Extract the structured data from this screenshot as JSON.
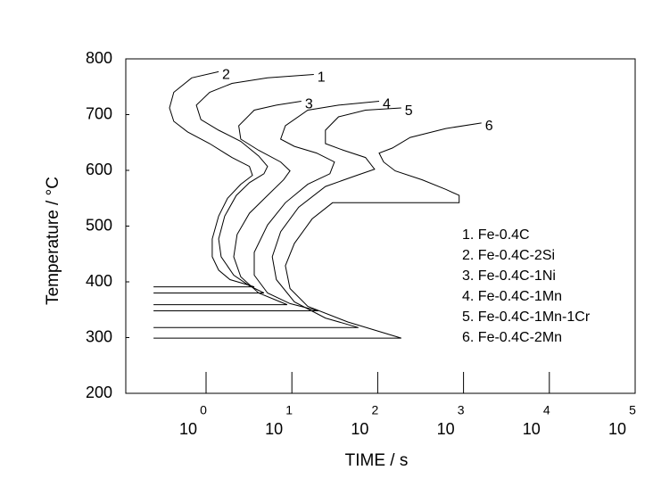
{
  "chart_data": {
    "type": "line",
    "y_label": "Temperature / °C",
    "x_label": "TIME / s",
    "x_scale": "log",
    "xlim": [
      0.116,
      100000
    ],
    "xticks": [
      {
        "value": 1,
        "label": "10",
        "exponent": "0"
      },
      {
        "value": 10,
        "label": "10",
        "exponent": "1"
      },
      {
        "value": 100,
        "label": "10",
        "exponent": "2"
      },
      {
        "value": 1000,
        "label": "10",
        "exponent": "3"
      },
      {
        "value": 10000,
        "label": "10",
        "exponent": "4"
      },
      {
        "value": 100000,
        "label": "10",
        "exponent": "5"
      }
    ],
    "ylim": [
      200,
      800
    ],
    "yticks": [
      200,
      300,
      400,
      500,
      600,
      700,
      800
    ],
    "grid": false,
    "legend": "right",
    "series": [
      {
        "name": "1. Fe-0.4C",
        "label": "1",
        "color": "#000000",
        "x": [
          18,
          5.2,
          2.0,
          1.1,
          0.77,
          0.87,
          1.4,
          2.54,
          4.1,
          5.2,
          4.73,
          3.2,
          2.25,
          1.65,
          1.4,
          1.5,
          2.1,
          3.2,
          4.73,
          0.244
        ],
        "values": [
          772,
          766,
          756,
          740,
          717,
          691,
          672,
          652,
          626,
          607,
          594,
          578,
          555,
          518,
          477,
          445,
          412,
          393,
          380,
          380
        ]
      },
      {
        "name": "2. Fe-0.4C-2Si",
        "label": "2",
        "color": "#000000",
        "x": [
          1.4,
          0.68,
          0.42,
          0.375,
          0.42,
          0.61,
          1.1,
          2.0,
          3.2,
          3.47,
          2.54,
          1.78,
          1.4,
          1.18,
          1.18,
          1.4,
          1.9,
          2.86,
          3.64,
          0.244
        ],
        "values": [
          777,
          766,
          740,
          712,
          688,
          669,
          648,
          623,
          607,
          591,
          575,
          550,
          518,
          477,
          445,
          421,
          404,
          396,
          391,
          391
        ]
      },
      {
        "name": "3. Fe-0.4C-1Ni",
        "label": "3",
        "color": "#000000",
        "x": [
          12.9,
          6.6,
          3.64,
          2.4,
          2.54,
          4.1,
          7.4,
          9.5,
          8,
          5.2,
          3.2,
          2.3,
          2.1,
          2.54,
          4.1,
          8.8,
          0.244
        ],
        "values": [
          724,
          717,
          708,
          680,
          656,
          636,
          615,
          599,
          583,
          555,
          523,
          485,
          445,
          409,
          380,
          359,
          359
        ]
      },
      {
        "name": "4. Fe-0.4C-1Mn",
        "label": "4",
        "color": "#000000",
        "x": [
          104,
          35,
          15.3,
          8.4,
          7.4,
          10.7,
          19.4,
          31.3,
          27.7,
          15.3,
          8.4,
          5.2,
          3.64,
          3.64,
          5.2,
          9.5,
          20.3,
          0.244
        ],
        "values": [
          724,
          717,
          708,
          680,
          656,
          643,
          631,
          615,
          594,
          575,
          542,
          502,
          453,
          412,
          380,
          361,
          348,
          348
        ]
      },
      {
        "name": "5. Fe-0.4C-1Mn-1Cr",
        "label": "5",
        "color": "#000000",
        "x": [
          188,
          72,
          35,
          24.6,
          24.6,
          40,
          72,
          92,
          57,
          24.6,
          12,
          7.4,
          5.9,
          6.6,
          10.7,
          24.6,
          59.7,
          0.244
        ],
        "values": [
          712,
          708,
          696,
          672,
          648,
          636,
          623,
          602,
          591,
          571,
          534,
          490,
          445,
          404,
          364,
          335,
          318,
          318
        ]
      },
      {
        "name": "6. Fe-0.4C-2Mn",
        "label": "6",
        "color": "#000000",
        "x": [
          1618,
          621,
          239,
          148,
          104,
          117,
          160,
          330,
          621,
          889,
          889,
          29.8,
          17.2,
          10.7,
          8.4,
          9.5,
          15.3,
          44.8,
          188,
          0.244
        ],
        "values": [
          685,
          675,
          659,
          640,
          631,
          615,
          599,
          583,
          566,
          555,
          542,
          542,
          513,
          469,
          429,
          388,
          356,
          328,
          299,
          299
        ]
      }
    ]
  }
}
